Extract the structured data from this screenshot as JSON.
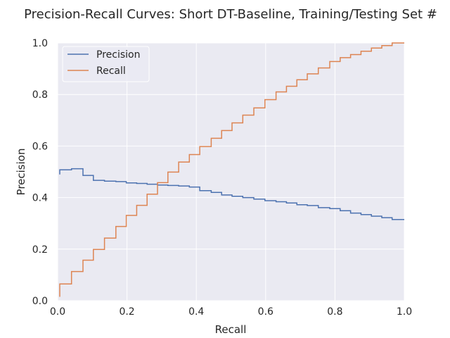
{
  "chart_data": {
    "type": "line",
    "title": "Precision-Recall Curves: Short DT-Baseline, Training/Testing Set #",
    "xlabel": "Recall",
    "ylabel": "Precision",
    "xlim": [
      0.0,
      1.0
    ],
    "ylim": [
      0.0,
      1.0
    ],
    "xticks": [
      "0.0",
      "0.2",
      "0.4",
      "0.6",
      "0.8",
      "1.0"
    ],
    "yticks": [
      "0.0",
      "0.2",
      "0.4",
      "0.6",
      "0.8",
      "1.0"
    ],
    "grid": true,
    "legend_position": "top-left",
    "background": "#eaeaf2",
    "step": true,
    "x": [
      0.006,
      0.04,
      0.073,
      0.103,
      0.135,
      0.168,
      0.198,
      0.228,
      0.258,
      0.288,
      0.318,
      0.349,
      0.38,
      0.41,
      0.443,
      0.473,
      0.503,
      0.534,
      0.566,
      0.598,
      0.63,
      0.66,
      0.69,
      0.72,
      0.752,
      0.785,
      0.815,
      0.845,
      0.875,
      0.905,
      0.935,
      0.965,
      1.0
    ],
    "series": [
      {
        "name": "Precision",
        "color": "#4c72b0",
        "values": [
          0.508,
          0.512,
          0.486,
          0.467,
          0.464,
          0.462,
          0.457,
          0.455,
          0.452,
          0.449,
          0.447,
          0.445,
          0.441,
          0.427,
          0.42,
          0.41,
          0.405,
          0.4,
          0.394,
          0.388,
          0.384,
          0.379,
          0.372,
          0.369,
          0.361,
          0.357,
          0.349,
          0.34,
          0.334,
          0.328,
          0.322,
          0.315,
          0.315
        ]
      },
      {
        "name": "Recall",
        "color": "#dd8452",
        "values": [
          0.065,
          0.113,
          0.157,
          0.199,
          0.243,
          0.288,
          0.331,
          0.37,
          0.413,
          0.458,
          0.499,
          0.538,
          0.567,
          0.598,
          0.63,
          0.66,
          0.69,
          0.72,
          0.748,
          0.78,
          0.81,
          0.832,
          0.857,
          0.88,
          0.903,
          0.928,
          0.943,
          0.955,
          0.968,
          0.98,
          0.99,
          1.0,
          1.0
        ]
      }
    ]
  }
}
